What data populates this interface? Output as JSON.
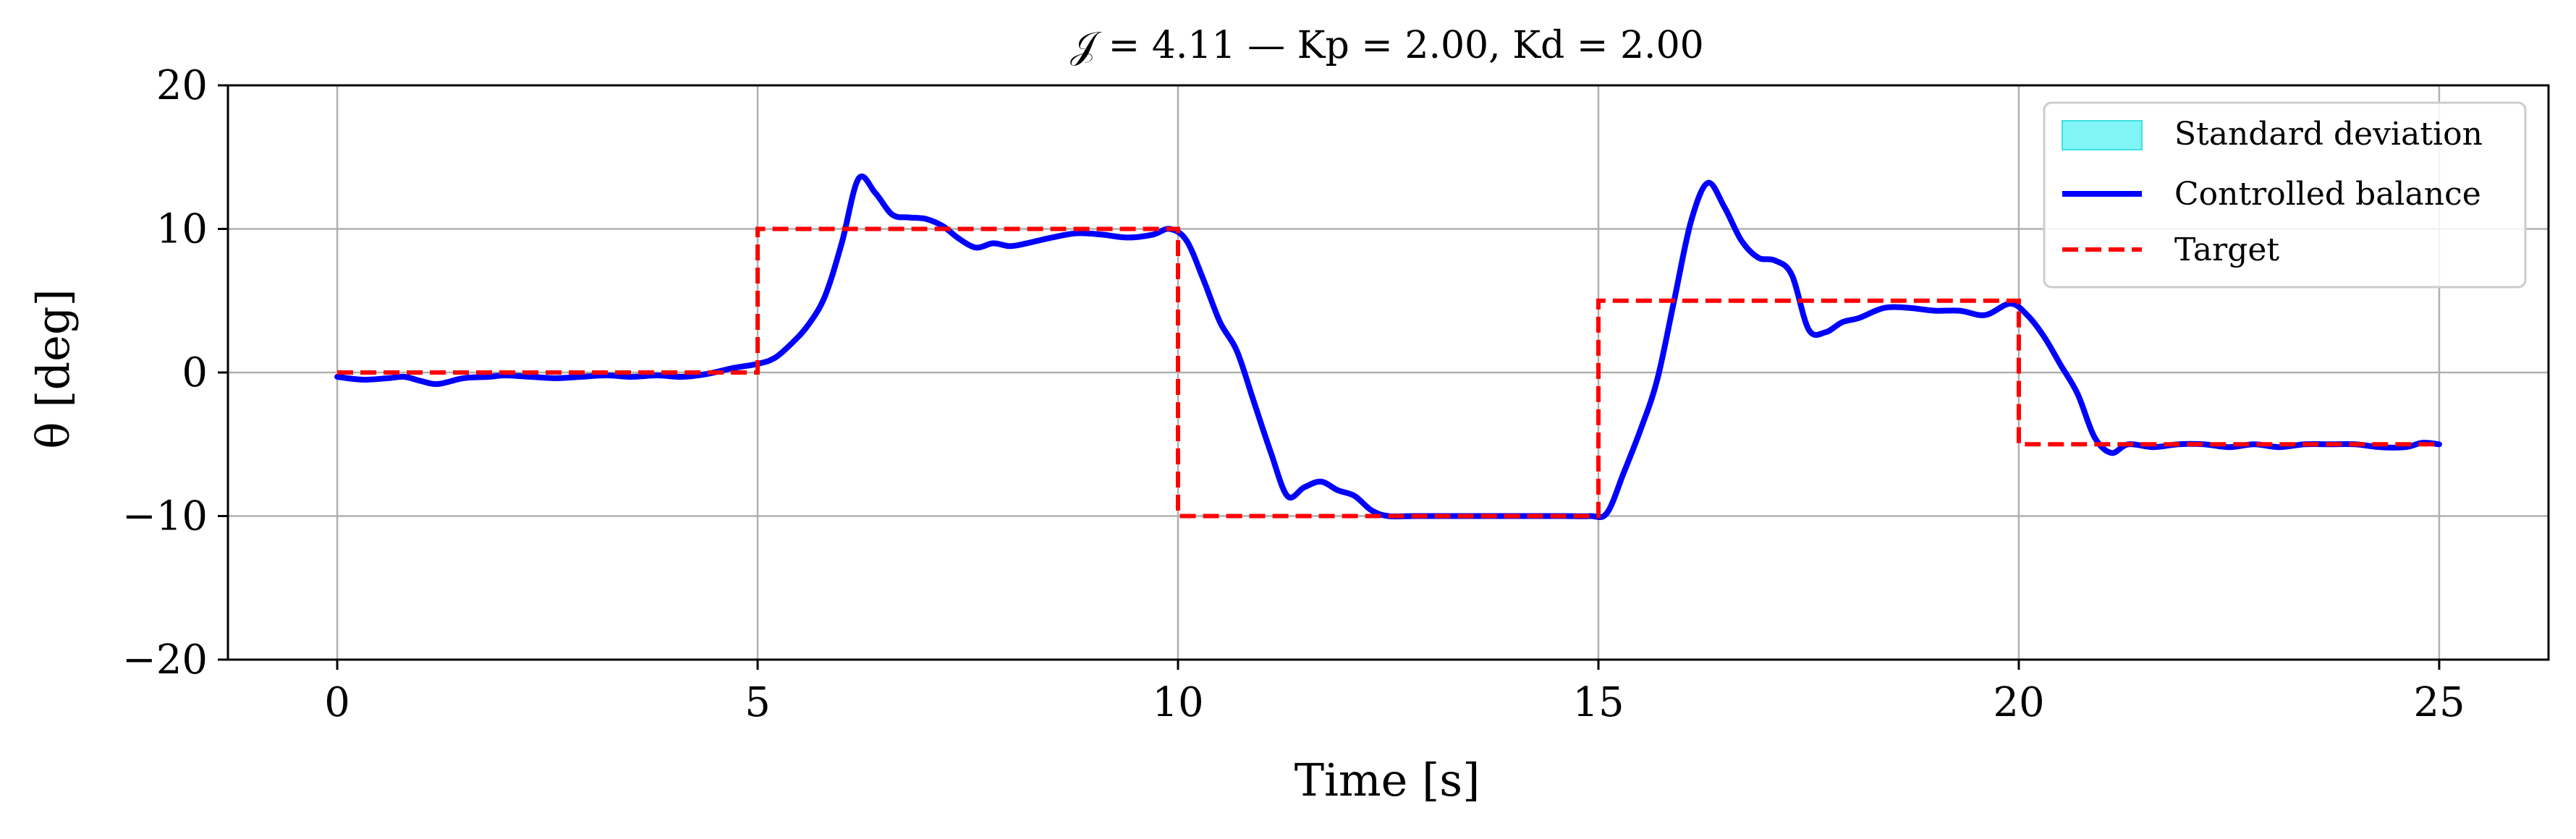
{
  "chart_data": {
    "type": "line",
    "title": "𝒥 = 4.11 — Kp = 2.00, Kd = 2.00",
    "xlabel": "Time [s]",
    "ylabel": "θ [deg]",
    "xlim": [
      -1.3,
      26.3
    ],
    "ylim": [
      -20,
      20
    ],
    "x_ticks": [
      0,
      5,
      10,
      15,
      20,
      25
    ],
    "y_ticks": [
      -20,
      -10,
      0,
      10,
      20
    ],
    "x_tick_labels": [
      "0",
      "5",
      "10",
      "15",
      "20",
      "25"
    ],
    "y_tick_labels": [
      "−20",
      "−10",
      "0",
      "10",
      "20"
    ],
    "grid": true,
    "legend_position": "top-right",
    "series": [
      {
        "name": "Standard deviation",
        "kind": "band",
        "color": "#7ff5f5",
        "x": [],
        "lower": [],
        "upper": []
      },
      {
        "name": "Controlled balance",
        "kind": "line",
        "color": "#0000ff",
        "x": [
          0,
          0.3,
          0.6,
          0.8,
          1.0,
          1.2,
          1.5,
          1.8,
          2.0,
          2.3,
          2.6,
          2.9,
          3.2,
          3.5,
          3.8,
          4.1,
          4.4,
          4.7,
          5.0,
          5.2,
          5.4,
          5.6,
          5.8,
          6.0,
          6.2,
          6.4,
          6.6,
          6.8,
          7.0,
          7.2,
          7.4,
          7.6,
          7.8,
          8.0,
          8.2,
          8.5,
          8.8,
          9.1,
          9.4,
          9.7,
          9.9,
          10.1,
          10.3,
          10.5,
          10.7,
          10.9,
          11.1,
          11.3,
          11.5,
          11.7,
          11.9,
          12.1,
          12.3,
          12.5,
          12.8,
          13.1,
          13.4,
          13.7,
          14.0,
          14.3,
          14.6,
          14.9,
          15.1,
          15.3,
          15.5,
          15.7,
          15.9,
          16.1,
          16.3,
          16.5,
          16.7,
          16.9,
          17.1,
          17.3,
          17.5,
          17.7,
          17.9,
          18.1,
          18.4,
          18.7,
          19.0,
          19.3,
          19.6,
          19.9,
          20.1,
          20.3,
          20.5,
          20.7,
          20.9,
          21.1,
          21.3,
          21.6,
          21.9,
          22.2,
          22.5,
          22.8,
          23.1,
          23.4,
          23.7,
          24.0,
          24.3,
          24.6,
          24.8,
          25.0
        ],
        "values": [
          -0.3,
          -0.5,
          -0.4,
          -0.3,
          -0.6,
          -0.8,
          -0.4,
          -0.3,
          -0.2,
          -0.3,
          -0.4,
          -0.3,
          -0.2,
          -0.3,
          -0.2,
          -0.3,
          -0.1,
          0.3,
          0.6,
          1.0,
          2.0,
          3.3,
          5.3,
          9.0,
          13.5,
          12.5,
          11.0,
          10.8,
          10.7,
          10.2,
          9.3,
          8.7,
          9.0,
          8.8,
          9.0,
          9.4,
          9.7,
          9.6,
          9.4,
          9.6,
          10.0,
          9.2,
          6.5,
          3.5,
          1.5,
          -2.0,
          -5.5,
          -8.6,
          -8.0,
          -7.6,
          -8.2,
          -8.6,
          -9.6,
          -10.0,
          -10.0,
          -10.0,
          -10.0,
          -10.0,
          -10.0,
          -10.0,
          -10.0,
          -10.0,
          -9.8,
          -7.0,
          -4.0,
          -0.5,
          5.0,
          10.5,
          13.2,
          11.5,
          9.2,
          8.0,
          7.8,
          6.8,
          3.0,
          2.8,
          3.5,
          3.8,
          4.5,
          4.5,
          4.3,
          4.3,
          4.0,
          4.8,
          4.0,
          2.5,
          0.5,
          -1.5,
          -4.5,
          -5.6,
          -5.0,
          -5.2,
          -5.0,
          -5.0,
          -5.2,
          -5.0,
          -5.2,
          -5.0,
          -5.0,
          -5.0,
          -5.2,
          -5.2,
          -4.9,
          -5.0
        ]
      },
      {
        "name": "Target",
        "kind": "step",
        "color": "#ff0000",
        "x": [
          0,
          5,
          5,
          10,
          10,
          15,
          15,
          20,
          20,
          25
        ],
        "values": [
          0,
          0,
          10,
          10,
          -10,
          -10,
          5,
          5,
          -5,
          -5
        ]
      }
    ]
  }
}
